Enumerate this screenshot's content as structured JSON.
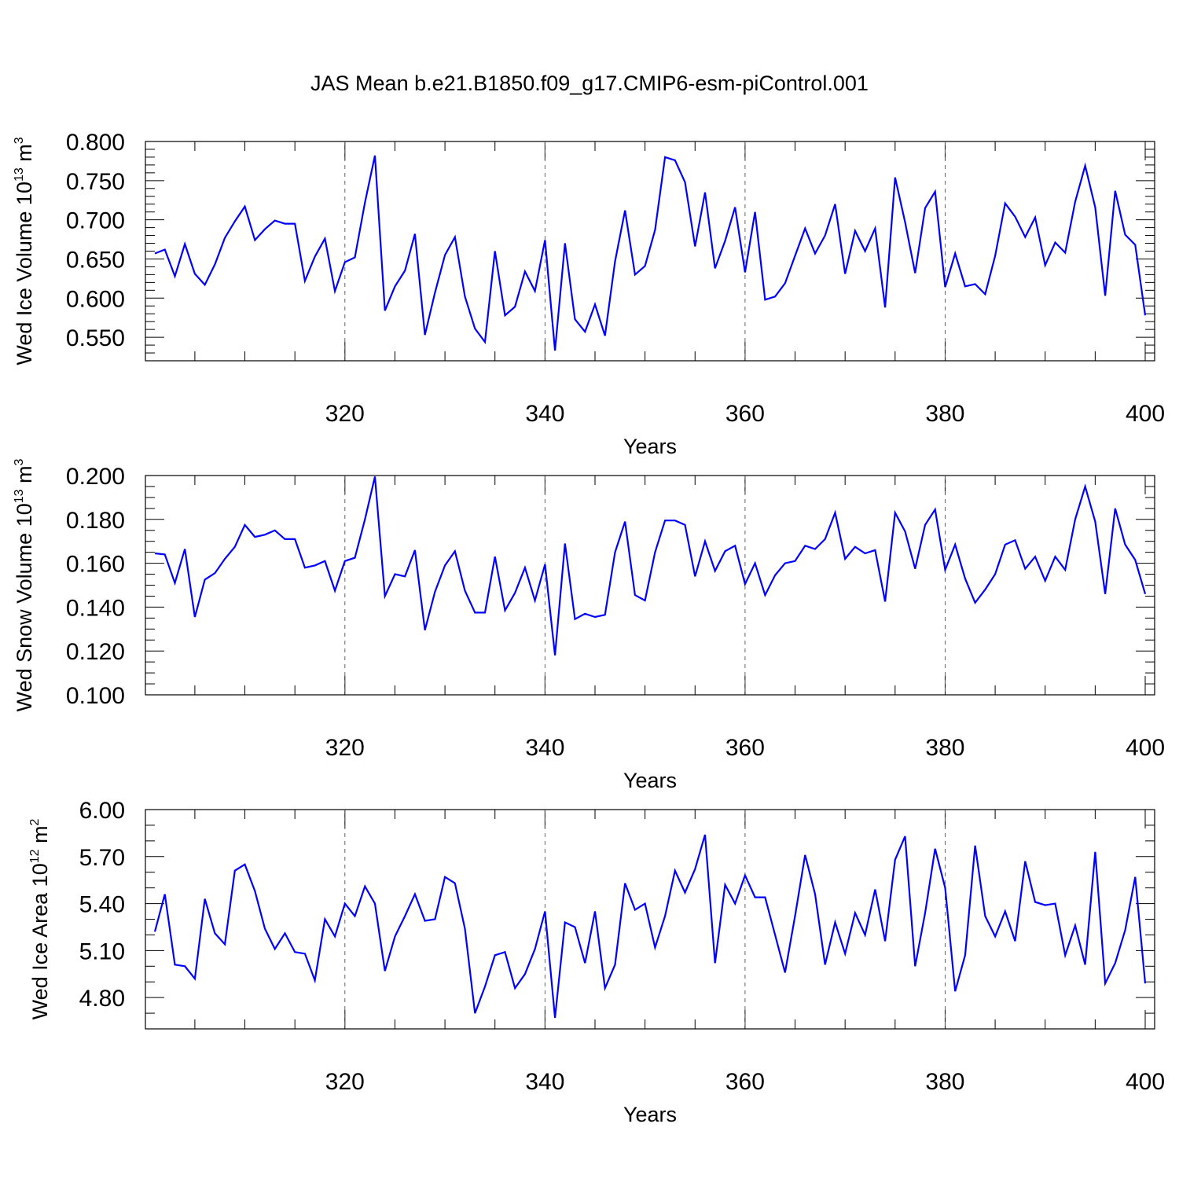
{
  "title": "JAS Mean b.e21.B1850.f09_g17.CMIP6-esm-piControl.001",
  "colors": {
    "line": "#0000ff",
    "axes": "#000000",
    "grid": "#555555"
  },
  "chart_data": [
    {
      "type": "line",
      "title": "JAS Mean b.e21.B1850.f09_g17.CMIP6-esm-piControl.001",
      "xlabel": "Years",
      "ylabel": {
        "prefix": "Wed Ice Volume 10",
        "exponent": "13",
        "unit": " m",
        "unit_exponent": "3"
      },
      "xlim": [
        301,
        400
      ],
      "ylim": [
        0.52,
        0.8
      ],
      "x_start": 301,
      "xticks": [
        "320",
        "340",
        "360",
        "380",
        "400"
      ],
      "yticks": [
        "0.550",
        "0.600",
        "0.650",
        "0.700",
        "0.750",
        "0.800"
      ],
      "grid": "vertical dashed at major x ticks",
      "series": [
        {
          "name": "Wed Ice Volume",
          "values": [
            0.657,
            0.662,
            0.628,
            0.669,
            0.631,
            0.617,
            0.643,
            0.677,
            0.698,
            0.717,
            0.674,
            0.688,
            0.699,
            0.695,
            0.695,
            0.622,
            0.653,
            0.676,
            0.609,
            0.646,
            0.652,
            0.722,
            0.782,
            0.584,
            0.615,
            0.635,
            0.682,
            0.553,
            0.607,
            0.655,
            0.678,
            0.602,
            0.561,
            0.544,
            0.66,
            0.578,
            0.589,
            0.634,
            0.609,
            0.674,
            0.533,
            0.67,
            0.573,
            0.557,
            0.592,
            0.552,
            0.647,
            0.712,
            0.63,
            0.641,
            0.687,
            0.78,
            0.776,
            0.748,
            0.666,
            0.735,
            0.638,
            0.673,
            0.716,
            0.633,
            0.71,
            0.598,
            0.602,
            0.619,
            0.654,
            0.689,
            0.657,
            0.68,
            0.72,
            0.631,
            0.686,
            0.66,
            0.689,
            0.588,
            0.754,
            0.697,
            0.632,
            0.715,
            0.736,
            0.614,
            0.657,
            0.615,
            0.618,
            0.605,
            0.654,
            0.721,
            0.704,
            0.678,
            0.703,
            0.642,
            0.671,
            0.658,
            0.723,
            0.769,
            0.716,
            0.603,
            0.737,
            0.681,
            0.668,
            0.578
          ]
        }
      ]
    },
    {
      "type": "line",
      "xlabel": "Years",
      "ylabel": {
        "prefix": "Wed Snow Volume 10",
        "exponent": "13",
        "unit": " m",
        "unit_exponent": "3"
      },
      "xlim": [
        301,
        400
      ],
      "ylim": [
        0.1,
        0.2
      ],
      "x_start": 301,
      "xticks": [
        "320",
        "340",
        "360",
        "380",
        "400"
      ],
      "yticks": [
        "0.100",
        "0.120",
        "0.140",
        "0.160",
        "0.180",
        "0.200"
      ],
      "grid": "vertical dashed at major x ticks",
      "series": [
        {
          "name": "Wed Snow Volume",
          "values": [
            0.1645,
            0.164,
            0.151,
            0.1665,
            0.1355,
            0.1525,
            0.1555,
            0.162,
            0.1675,
            0.1775,
            0.172,
            0.173,
            0.175,
            0.171,
            0.171,
            0.158,
            0.159,
            0.161,
            0.1475,
            0.161,
            0.1625,
            0.18,
            0.1995,
            0.145,
            0.155,
            0.154,
            0.166,
            0.1295,
            0.147,
            0.159,
            0.1655,
            0.1475,
            0.1375,
            0.1375,
            0.163,
            0.1385,
            0.1465,
            0.158,
            0.143,
            0.1595,
            0.118,
            0.169,
            0.1345,
            0.137,
            0.1355,
            0.1365,
            0.165,
            0.179,
            0.1455,
            0.143,
            0.165,
            0.1795,
            0.1795,
            0.1775,
            0.154,
            0.17,
            0.1565,
            0.1655,
            0.168,
            0.1505,
            0.16,
            0.1455,
            0.1545,
            0.16,
            0.161,
            0.168,
            0.1665,
            0.171,
            0.183,
            0.162,
            0.1675,
            0.1645,
            0.166,
            0.1425,
            0.183,
            0.1745,
            0.1575,
            0.1775,
            0.1845,
            0.157,
            0.1685,
            0.153,
            0.142,
            0.148,
            0.155,
            0.1685,
            0.1705,
            0.1575,
            0.163,
            0.152,
            0.163,
            0.157,
            0.18,
            0.195,
            0.179,
            0.146,
            0.185,
            0.1685,
            0.1615,
            0.146
          ]
        }
      ]
    },
    {
      "type": "line",
      "xlabel": "Years",
      "ylabel": {
        "prefix": "Wed Ice Area 10",
        "exponent": "12",
        "unit": " m",
        "unit_exponent": "2"
      },
      "xlim": [
        301,
        400
      ],
      "ylim": [
        4.6,
        6.0
      ],
      "x_start": 301,
      "xticks": [
        "320",
        "340",
        "360",
        "380",
        "400"
      ],
      "yticks": [
        "4.80",
        "5.10",
        "5.40",
        "5.70",
        "6.00"
      ],
      "grid": "vertical dashed at major x ticks",
      "series": [
        {
          "name": "Wed Ice Area",
          "values": [
            5.22,
            5.46,
            5.01,
            5.0,
            4.92,
            5.43,
            5.21,
            5.14,
            5.61,
            5.65,
            5.48,
            5.24,
            5.11,
            5.21,
            5.09,
            5.08,
            4.91,
            5.3,
            5.19,
            5.4,
            5.32,
            5.51,
            5.4,
            4.97,
            5.19,
            5.32,
            5.46,
            5.29,
            5.3,
            5.57,
            5.53,
            5.24,
            4.7,
            4.87,
            5.07,
            5.09,
            4.86,
            4.95,
            5.11,
            5.35,
            4.67,
            5.28,
            5.25,
            5.02,
            5.35,
            4.86,
            5.01,
            5.53,
            5.36,
            5.4,
            5.12,
            5.32,
            5.61,
            5.47,
            5.62,
            5.84,
            5.02,
            5.52,
            5.4,
            5.58,
            5.44,
            5.44,
            5.2,
            4.96,
            5.32,
            5.71,
            5.46,
            5.01,
            5.28,
            5.08,
            5.34,
            5.2,
            5.49,
            5.16,
            5.68,
            5.83,
            5.0,
            5.34,
            5.75,
            5.5,
            4.84,
            5.07,
            5.77,
            5.32,
            5.19,
            5.35,
            5.16,
            5.67,
            5.41,
            5.39,
            5.4,
            5.07,
            5.26,
            5.01,
            5.73,
            4.89,
            5.02,
            5.23,
            5.57,
            4.89
          ]
        }
      ]
    }
  ]
}
